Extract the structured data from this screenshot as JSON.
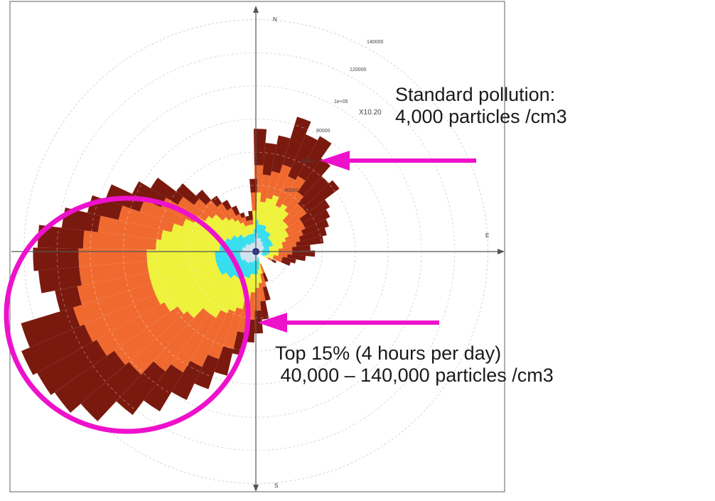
{
  "chart_data": {
    "type": "polar-bar",
    "title": "",
    "compass": [
      "N",
      "E",
      "S"
    ],
    "radial_ticks": [
      "140000",
      "120000",
      "1e+05",
      "80000",
      "60000",
      "40000"
    ],
    "radial_max": 140000,
    "inset_label": "X10.20",
    "bands": [
      "#cfe0ee",
      "#33ddee",
      "#eef23a",
      "#f06a30",
      "#7a1a0f"
    ],
    "sectors": [
      {
        "dir": 2,
        "r": [
          0.08,
          0.14,
          0.26,
          0.38,
          0.54
        ]
      },
      {
        "dir": 8,
        "r": [
          0.06,
          0.12,
          0.22,
          0.34,
          0.48
        ]
      },
      {
        "dir": 14,
        "r": [
          0.06,
          0.12,
          0.24,
          0.36,
          0.52
        ]
      },
      {
        "dir": 20,
        "r": [
          0.06,
          0.12,
          0.26,
          0.4,
          0.62
        ]
      },
      {
        "dir": 26,
        "r": [
          0.05,
          0.1,
          0.22,
          0.36,
          0.56
        ]
      },
      {
        "dir": 32,
        "r": [
          0.05,
          0.1,
          0.24,
          0.38,
          0.58
        ]
      },
      {
        "dir": 38,
        "r": [
          0.05,
          0.1,
          0.22,
          0.32,
          0.5
        ]
      },
      {
        "dir": 44,
        "r": [
          0.04,
          0.08,
          0.18,
          0.28,
          0.44
        ]
      },
      {
        "dir": 50,
        "r": [
          0.04,
          0.08,
          0.18,
          0.28,
          0.46
        ]
      },
      {
        "dir": 56,
        "r": [
          0.04,
          0.08,
          0.16,
          0.24,
          0.38
        ]
      },
      {
        "dir": 62,
        "r": [
          0.04,
          0.08,
          0.16,
          0.24,
          0.36
        ]
      },
      {
        "dir": 68,
        "r": [
          0.04,
          0.08,
          0.14,
          0.22,
          0.34
        ]
      },
      {
        "dir": 74,
        "r": [
          0.03,
          0.06,
          0.12,
          0.2,
          0.32
        ]
      },
      {
        "dir": 80,
        "r": [
          0.03,
          0.06,
          0.12,
          0.18,
          0.3
        ]
      },
      {
        "dir": 86,
        "r": [
          0.03,
          0.06,
          0.1,
          0.16,
          0.24
        ]
      },
      {
        "dir": 92,
        "r": [
          0.03,
          0.06,
          0.1,
          0.16,
          0.26
        ]
      },
      {
        "dir": 98,
        "r": [
          0.03,
          0.06,
          0.1,
          0.14,
          0.22
        ]
      },
      {
        "dir": 104,
        "r": [
          0.03,
          0.05,
          0.08,
          0.12,
          0.18
        ]
      },
      {
        "dir": 110,
        "r": [
          0.03,
          0.05,
          0.08,
          0.12,
          0.16
        ]
      },
      {
        "dir": 118,
        "r": [
          0.02,
          0.04,
          0.06,
          0.08,
          0.1
        ]
      },
      {
        "dir": 160,
        "r": [
          0.02,
          0.04,
          0.06,
          0.1,
          0.14
        ]
      },
      {
        "dir": 166,
        "r": [
          0.03,
          0.06,
          0.1,
          0.16,
          0.22
        ]
      },
      {
        "dir": 172,
        "r": [
          0.04,
          0.08,
          0.14,
          0.22,
          0.3
        ]
      },
      {
        "dir": 178,
        "r": [
          0.04,
          0.1,
          0.16,
          0.26,
          0.36
        ]
      },
      {
        "dir": 184,
        "r": [
          0.04,
          0.1,
          0.18,
          0.3,
          0.4
        ]
      },
      {
        "dir": 190,
        "r": [
          0.04,
          0.1,
          0.22,
          0.36,
          0.46
        ]
      },
      {
        "dir": 196,
        "r": [
          0.05,
          0.12,
          0.26,
          0.44,
          0.56
        ]
      },
      {
        "dir": 202,
        "r": [
          0.05,
          0.12,
          0.28,
          0.5,
          0.64
        ]
      },
      {
        "dir": 208,
        "r": [
          0.05,
          0.14,
          0.3,
          0.56,
          0.72
        ]
      },
      {
        "dir": 214,
        "r": [
          0.06,
          0.14,
          0.34,
          0.62,
          0.82
        ]
      },
      {
        "dir": 220,
        "r": [
          0.06,
          0.14,
          0.34,
          0.66,
          0.9
        ]
      },
      {
        "dir": 226,
        "r": [
          0.06,
          0.16,
          0.4,
          0.74,
          1.02
        ]
      },
      {
        "dir": 232,
        "r": [
          0.06,
          0.16,
          0.42,
          0.76,
          1.08
        ]
      },
      {
        "dir": 238,
        "r": [
          0.07,
          0.18,
          0.46,
          0.8,
          1.1
        ]
      },
      {
        "dir": 244,
        "r": [
          0.07,
          0.18,
          0.48,
          0.82,
          1.12
        ]
      },
      {
        "dir": 250,
        "r": [
          0.07,
          0.18,
          0.48,
          0.84,
          1.08
        ]
      },
      {
        "dir": 256,
        "r": [
          0.07,
          0.18,
          0.48,
          0.8,
          0.9
        ]
      },
      {
        "dir": 262,
        "r": [
          0.07,
          0.18,
          0.48,
          0.78,
          0.96
        ]
      },
      {
        "dir": 268,
        "r": [
          0.07,
          0.18,
          0.48,
          0.78,
          0.98
        ]
      },
      {
        "dir": 274,
        "r": [
          0.06,
          0.16,
          0.44,
          0.76,
          0.96
        ]
      },
      {
        "dir": 280,
        "r": [
          0.06,
          0.16,
          0.42,
          0.7,
          0.86
        ]
      },
      {
        "dir": 286,
        "r": [
          0.06,
          0.16,
          0.38,
          0.62,
          0.76
        ]
      },
      {
        "dir": 292,
        "r": [
          0.05,
          0.14,
          0.34,
          0.54,
          0.7
        ]
      },
      {
        "dir": 298,
        "r": [
          0.05,
          0.12,
          0.3,
          0.46,
          0.6
        ]
      },
      {
        "dir": 304,
        "r": [
          0.05,
          0.12,
          0.26,
          0.4,
          0.54
        ]
      },
      {
        "dir": 310,
        "r": [
          0.05,
          0.1,
          0.24,
          0.34,
          0.44
        ]
      },
      {
        "dir": 316,
        "r": [
          0.04,
          0.1,
          0.2,
          0.3,
          0.36
        ]
      },
      {
        "dir": 322,
        "r": [
          0.04,
          0.08,
          0.18,
          0.26,
          0.3
        ]
      },
      {
        "dir": 328,
        "r": [
          0.04,
          0.08,
          0.16,
          0.22,
          0.26
        ]
      },
      {
        "dir": 334,
        "r": [
          0.04,
          0.08,
          0.14,
          0.18,
          0.22
        ]
      },
      {
        "dir": 340,
        "r": [
          0.04,
          0.08,
          0.12,
          0.16,
          0.18
        ]
      },
      {
        "dir": 346,
        "r": [
          0.04,
          0.08,
          0.12,
          0.14,
          0.16
        ]
      },
      {
        "dir": 352,
        "r": [
          0.04,
          0.08,
          0.12,
          0.14,
          0.18
        ]
      },
      {
        "dir": 358,
        "r": [
          0.06,
          0.1,
          0.18,
          0.26,
          0.32
        ]
      }
    ]
  },
  "annotations": {
    "standard": "Standard pollution:\n4,000 particles /cm3",
    "top": "Top 15% (4 hours per day)\n 40,000 – 140,000 particles /cm3"
  },
  "colors": {
    "highlight": "#ee11cc",
    "grid": "#d4d4d4",
    "axis": "#555555"
  }
}
